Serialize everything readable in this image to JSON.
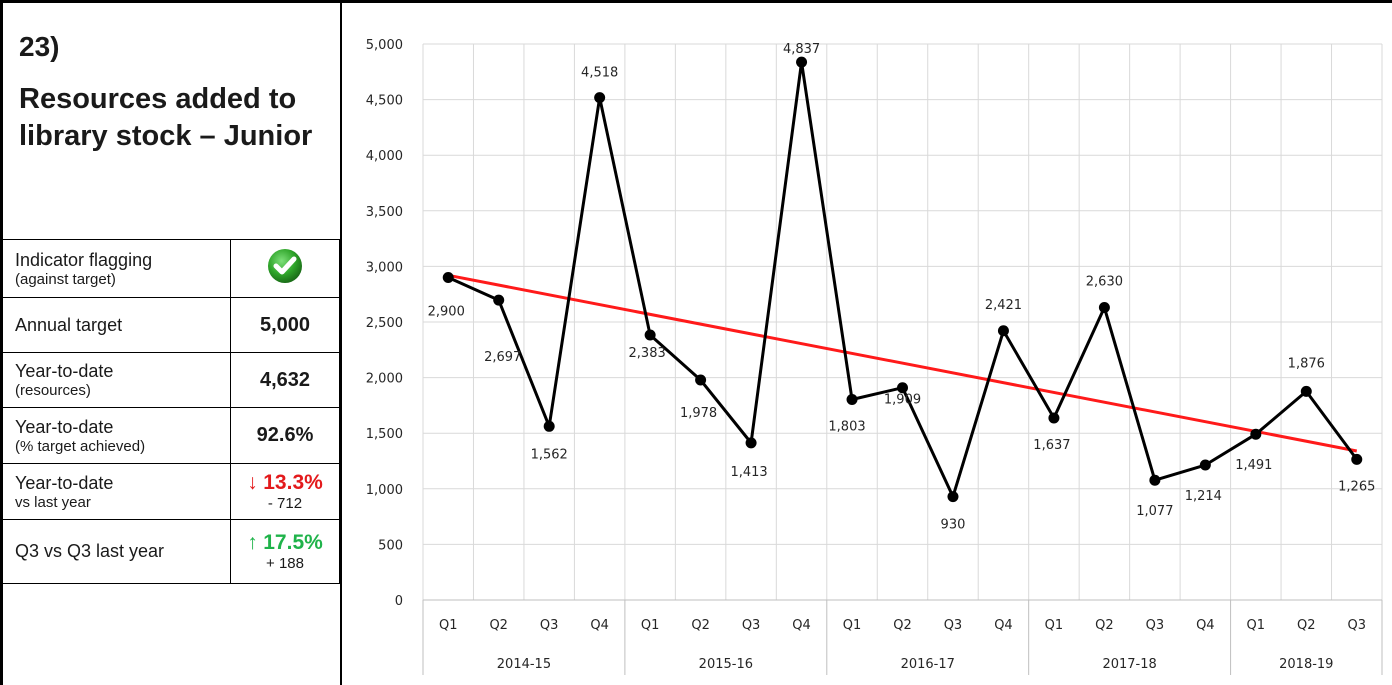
{
  "panel": {
    "number": "23)",
    "title": "Resources added to library stock – Junior"
  },
  "table": {
    "rows": [
      {
        "label": "Indicator flagging",
        "sub": "(against target)",
        "value": "",
        "icon": "green-check-icon"
      },
      {
        "label": "Annual target",
        "sub": "",
        "value": "5,000"
      },
      {
        "label": "Year-to-date",
        "sub": "(resources)",
        "value": "4,632"
      },
      {
        "label": "Year-to-date",
        "sub": "(% target achieved)",
        "value": "92.6%"
      },
      {
        "label": "Year-to-date",
        "sub": "vs last year",
        "arrow": "↓",
        "value": "13.3%",
        "detail": "- 712",
        "color": "#e31a1c"
      },
      {
        "label": "Q3 vs Q3 last year",
        "sub": "",
        "arrow": "↑",
        "value": "17.5%",
        "detail": "+ 188",
        "color": "#1fb34a"
      }
    ]
  },
  "chart_data": {
    "type": "line",
    "ylim": [
      0,
      5000
    ],
    "yticks": [
      "0",
      "500",
      "1,000",
      "1,500",
      "2,000",
      "2,500",
      "3,000",
      "3,500",
      "4,000",
      "4,500",
      "5,000"
    ],
    "x": [
      "Q1",
      "Q2",
      "Q3",
      "Q4",
      "Q1",
      "Q2",
      "Q3",
      "Q4",
      "Q1",
      "Q2",
      "Q3",
      "Q4",
      "Q1",
      "Q2",
      "Q3",
      "Q4",
      "Q1",
      "Q2",
      "Q3"
    ],
    "groups": [
      {
        "label": "2014-15",
        "count": 4
      },
      {
        "label": "2015-16",
        "count": 4
      },
      {
        "label": "2016-17",
        "count": 4
      },
      {
        "label": "2017-18",
        "count": 4
      },
      {
        "label": "2018-19",
        "count": 3
      }
    ],
    "series": [
      {
        "values": [
          2900,
          2697,
          1562,
          4518,
          2383,
          1978,
          1413,
          4837,
          1803,
          1909,
          930,
          2421,
          1637,
          2630,
          1077,
          1214,
          1491,
          1876,
          1265
        ],
        "labels": [
          "2,900",
          "2,697",
          "1,562",
          "4,518",
          "2,383",
          "1,978",
          "1,413",
          "4,837",
          "1,803",
          "1,909",
          "930",
          "2,421",
          "1,637",
          "2,630",
          "1,077",
          "1,214",
          "1,491",
          "1,876",
          "1,265"
        ],
        "color": "#000000"
      }
    ],
    "trendline": {
      "start": 2920,
      "end": 1340,
      "color": "#ff1a1a"
    },
    "grid": true
  }
}
